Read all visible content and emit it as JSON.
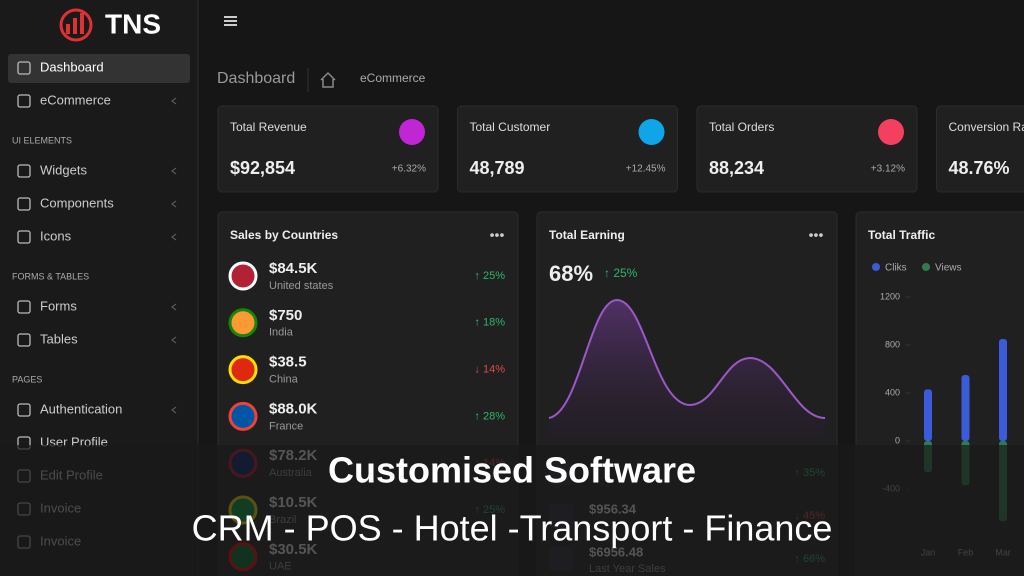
{
  "brand": "TNS",
  "sidebar": {
    "top": [
      "Dashboard",
      "eCommerce"
    ],
    "sections": [
      {
        "title": "UI ELEMENTS",
        "items": [
          "Widgets",
          "Components",
          "Icons"
        ]
      },
      {
        "title": "FORMS & TABLES",
        "items": [
          "Forms",
          "Tables"
        ]
      },
      {
        "title": "PAGES",
        "items": [
          "Authentication",
          "User Profile",
          "Edit Profile",
          "Invoice",
          "Invoice"
        ]
      }
    ]
  },
  "breadcrumb": {
    "title": "Dashboard",
    "current": "eCommerce"
  },
  "stats": [
    {
      "label": "Total Revenue",
      "value": "$92,854",
      "change": "+6.32%"
    },
    {
      "label": "Total Customer",
      "value": "48,789",
      "change": "+12.45%"
    },
    {
      "label": "Total Orders",
      "value": "88,234",
      "change": "+3.12%"
    },
    {
      "label": "Conversion Rate",
      "value": "48.76%"
    }
  ],
  "sales": {
    "title": "Sales by Countries",
    "rows": [
      {
        "amount": "$84.5K",
        "country": "United states",
        "change": "↑ 25%"
      },
      {
        "amount": "$750",
        "country": "India",
        "change": "↑ 18%"
      },
      {
        "amount": "$38.5",
        "country": "China",
        "change": "↓ 14%"
      },
      {
        "amount": "$88.0K",
        "country": "France",
        "change": "↑ 28%"
      },
      {
        "amount": "$78.2K",
        "country": "Australia",
        "change": "↓ 14%"
      },
      {
        "amount": "$10.5K",
        "country": "Brazil",
        "change": "↑ 25%"
      },
      {
        "amount": "$30.5K",
        "country": "UAE"
      }
    ]
  },
  "earning": {
    "title": "Total Earning",
    "percent": "68%",
    "change": "↑ 25%",
    "rows": [
      {
        "change": "↑ 35%"
      },
      {
        "amount": "$956.34",
        "change": "↓ 45%"
      },
      {
        "amount": "$6956.48",
        "label": "Last Year Sales",
        "change": "↑ 66%"
      }
    ]
  },
  "chart_data": {
    "type": "bar",
    "title": "Total Traffic",
    "categories": [
      "Jan",
      "Feb",
      "Mar"
    ],
    "series": [
      {
        "name": "Cliks",
        "color": "#3b5bdb",
        "values": [
          430,
          550,
          850
        ]
      },
      {
        "name": "Views",
        "color": "#2f7d4f",
        "values": [
          -260,
          -370,
          -670
        ]
      }
    ],
    "ylim": [
      -800,
      1300
    ],
    "yticks": [
      -400,
      0,
      400,
      800,
      1200
    ]
  },
  "banner": {
    "title": "Customised Software",
    "subtitle": "CRM - POS - Hotel -Transport - Finance"
  }
}
